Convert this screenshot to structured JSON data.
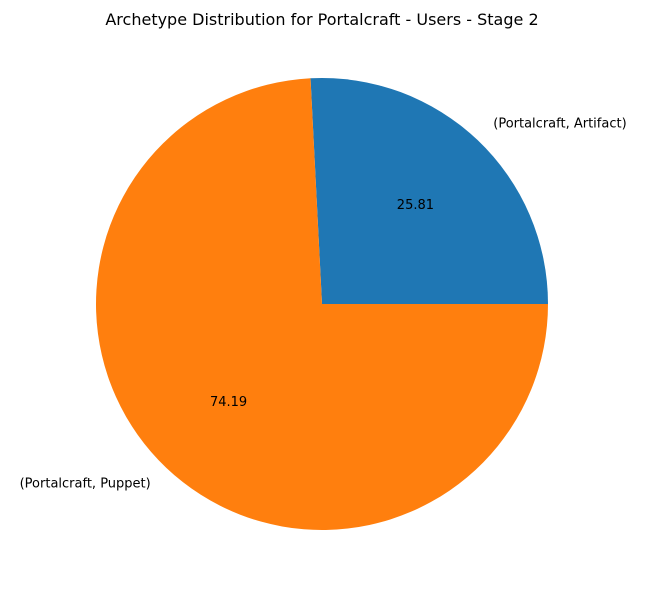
{
  "chart_data": {
    "type": "pie",
    "title": "Archetype Distribution for Portalcraft - Users - Stage 2",
    "slices": [
      {
        "label": "(Portalcraft, Artifact)",
        "value": 25.81,
        "display": "25.81",
        "color": "#1f77b4"
      },
      {
        "label": "(Portalcraft, Puppet)",
        "value": 74.19,
        "display": "74.19",
        "color": "#ff7f0e"
      }
    ],
    "start_angle_deg": 0,
    "direction": "counterclockwise",
    "legend": "none"
  }
}
